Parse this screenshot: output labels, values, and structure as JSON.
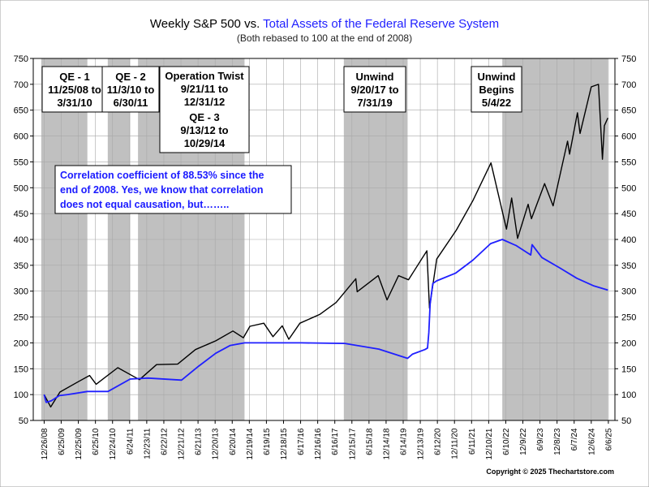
{
  "chart_data": {
    "type": "line",
    "title_part1": "Weekly S&P 500 vs. ",
    "title_part2": "Total Assets of the Federal Reserve System",
    "subtitle": "(Both rebased to 100 at the end of 2008)",
    "copyright": "Copyright © 2025 Thechartstore.com",
    "ylim": [
      50,
      750
    ],
    "yticks": [
      50,
      100,
      150,
      200,
      250,
      300,
      350,
      400,
      450,
      500,
      550,
      600,
      650,
      700,
      750
    ],
    "ytick_labels": [
      "50",
      "100",
      "150",
      "200",
      "250",
      "300",
      "350",
      "400",
      "450",
      "500",
      "550",
      "600",
      "650",
      "700",
      "750"
    ],
    "xlim": [
      "2008-09-01",
      "2025-08-15"
    ],
    "xticks": [
      "2008-12-26",
      "2009-06-25",
      "2009-12-25",
      "2010-06-25",
      "2010-12-24",
      "2011-06-24",
      "2011-12-23",
      "2012-06-22",
      "2012-12-21",
      "2013-06-21",
      "2013-12-20",
      "2014-06-20",
      "2014-12-19",
      "2015-06-19",
      "2015-12-18",
      "2016-06-17",
      "2016-12-16",
      "2017-06-16",
      "2017-12-15",
      "2018-06-15",
      "2018-12-14",
      "2019-06-14",
      "2019-12-13",
      "2020-06-12",
      "2020-12-11",
      "2021-06-11",
      "2021-12-10",
      "2022-06-10",
      "2022-12-09",
      "2023-06-09",
      "2023-12-08",
      "2024-06-07",
      "2024-12-06",
      "2025-06-06"
    ],
    "xtick_labels": [
      "12/26/08",
      "6/25/09",
      "12/25/09",
      "6/25/10",
      "12/24/10",
      "6/24/11",
      "12/23/11",
      "6/22/12",
      "12/21/12",
      "6/21/13",
      "12/20/13",
      "6/20/14",
      "12/19/14",
      "6/19/15",
      "12/18/15",
      "6/17/16",
      "12/16/16",
      "6/16/17",
      "12/15/17",
      "6/15/18",
      "12/14/18",
      "6/14/19",
      "12/13/19",
      "6/12/20",
      "12/11/20",
      "6/11/21",
      "12/10/21",
      "6/10/22",
      "12/9/22",
      "6/9/23",
      "12/8/23",
      "6/7/24",
      "12/6/24",
      "6/6/25"
    ],
    "grid": true,
    "shaded_periods": [
      {
        "start": "2008-11-25",
        "end": "2010-03-31"
      },
      {
        "start": "2010-11-03",
        "end": "2011-06-30"
      },
      {
        "start": "2011-09-21",
        "end": "2014-10-29"
      },
      {
        "start": "2017-09-20",
        "end": "2019-07-31"
      },
      {
        "start": "2022-05-04",
        "end": "2025-06-01"
      }
    ],
    "annotations": [
      {
        "lines": [
          "QE - 1",
          "11/25/08 to",
          "3/31/10"
        ]
      },
      {
        "lines": [
          "QE - 2",
          "11/3/10 to",
          "6/30/11"
        ]
      },
      {
        "lines": [
          "Operation Twist",
          "9/21/11 to",
          "12/31/12",
          "QE - 3",
          "9/13/12 to",
          "10/29/14"
        ]
      },
      {
        "lines": [
          "Unwind",
          "9/20/17 to",
          "7/31/19"
        ]
      },
      {
        "lines": [
          "Unwind",
          "Begins",
          "5/4/22"
        ]
      }
    ],
    "correlation_note": [
      "Correlation coefficient of 88.53% since the",
      "end of 2008. Yes, we know that correlation",
      "does not equal causation, but…….."
    ],
    "series": [
      {
        "color": "#000000",
        "x": [
          "2008-12-26",
          "2009-03-06",
          "2009-06-12",
          "2009-12-25",
          "2010-04-23",
          "2010-07-02",
          "2011-02-18",
          "2011-08-05",
          "2011-10-07",
          "2012-04-06",
          "2012-11-16",
          "2013-05-24",
          "2013-12-27",
          "2014-06-27",
          "2014-10-17",
          "2014-12-26",
          "2015-05-22",
          "2015-08-28",
          "2015-12-04",
          "2016-02-12",
          "2016-06-10",
          "2017-01-06",
          "2017-06-30",
          "2018-01-26",
          "2018-02-09",
          "2018-09-21",
          "2018-12-24",
          "2019-04-26",
          "2019-08-09",
          "2020-02-21",
          "2020-03-20",
          "2020-06-05",
          "2020-12-31",
          "2021-06-25",
          "2022-01-03",
          "2022-06-17",
          "2022-08-12",
          "2022-10-14",
          "2023-02-03",
          "2023-03-10",
          "2023-07-28",
          "2023-10-27",
          "2024-03-29",
          "2024-04-19",
          "2024-07-12",
          "2024-08-09",
          "2024-12-06",
          "2025-02-21",
          "2025-04-04",
          "2025-04-25",
          "2025-06-01"
        ],
        "y": [
          100,
          76,
          105,
          125,
          137,
          120,
          152,
          135,
          129,
          158,
          159,
          187,
          204,
          223,
          210,
          232,
          238,
          212,
          233,
          207,
          238,
          255,
          278,
          324,
          299,
          330,
          283,
          330,
          322,
          378,
          267,
          362,
          418,
          475,
          548,
          420,
          480,
          402,
          468,
          440,
          508,
          465,
          590,
          565,
          645,
          605,
          695,
          700,
          555,
          620,
          635
        ]
      },
      {
        "color": "#1f1fff",
        "x": [
          "2008-12-26",
          "2009-01-16",
          "2009-03-13",
          "2009-06-05",
          "2009-09-04",
          "2010-03-31",
          "2010-11-05",
          "2011-06-30",
          "2012-01-06",
          "2012-12-28",
          "2013-06-28",
          "2013-12-27",
          "2014-05-30",
          "2014-10-31",
          "2015-06-26",
          "2016-06-24",
          "2017-09-29",
          "2018-09-28",
          "2019-07-31",
          "2019-09-20",
          "2020-01-31",
          "2020-02-28",
          "2020-03-13",
          "2020-03-27",
          "2020-04-24",
          "2020-06-05",
          "2020-12-25",
          "2021-06-25",
          "2021-12-31",
          "2022-05-04",
          "2022-09-30",
          "2023-03-03",
          "2023-03-17",
          "2023-06-30",
          "2024-01-05",
          "2024-07-05",
          "2025-01-03",
          "2025-06-01"
        ],
        "y": [
          100,
          85,
          88,
          98,
          100,
          106,
          106,
          130,
          132,
          128,
          155,
          180,
          195,
          200,
          200,
          200,
          199,
          188,
          170,
          178,
          187,
          190,
          220,
          275,
          315,
          320,
          335,
          360,
          392,
          400,
          388,
          370,
          390,
          365,
          345,
          325,
          310,
          302
        ]
      }
    ]
  }
}
